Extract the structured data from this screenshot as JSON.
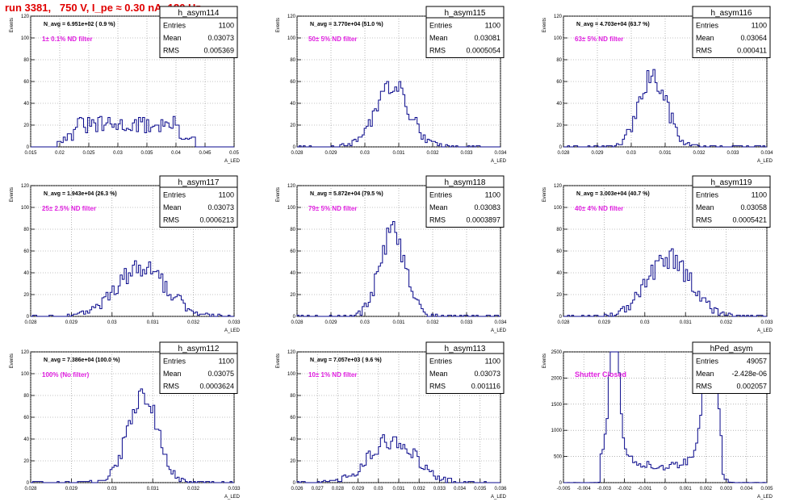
{
  "page_title": "run 3381,   750 V, I_pe ≈ 0.30 nA, 120 Hz",
  "colors": {
    "histogram": "#0a0a8c",
    "filter_label": "#e020e0",
    "title": "#e00000"
  },
  "chart_data": [
    {
      "type": "histogram",
      "name": "h_asym114",
      "navg": "N_avg = 6.951e+02 ( 0.9 %)",
      "label": "1± 0.1% ND filter",
      "stats": [
        [
          "Entries",
          "1100"
        ],
        [
          "Mean",
          "0.03073"
        ],
        [
          "RMS",
          "0.005369"
        ]
      ],
      "xlim": [
        0.015,
        0.05
      ],
      "ylim": [
        0,
        120
      ],
      "xticks": [
        "0.015",
        "0.02",
        "0.025",
        "0.03",
        "0.035",
        "0.04",
        "0.045",
        "0.05"
      ],
      "yticks": [
        "0",
        "20",
        "40",
        "60",
        "80",
        "100",
        "120"
      ],
      "xlabel": "A_LED",
      "ylabel": "Events",
      "dist": "flat",
      "center": 0.0306,
      "sigma": 0.0055
    },
    {
      "type": "histogram",
      "name": "h_asym115",
      "navg": "N_avg = 3.770e+04 (51.0 %)",
      "label": "50± 5% ND filter",
      "stats": [
        [
          "Entries",
          "1100"
        ],
        [
          "Mean",
          "0.03081"
        ],
        [
          "RMS",
          "0.0005054"
        ]
      ],
      "xlim": [
        0.028,
        0.034
      ],
      "ylim": [
        0,
        120
      ],
      "xticks": [
        "0.028",
        "0.029",
        "0.03",
        "0.031",
        "0.032",
        "0.033",
        "0.034"
      ],
      "yticks": [
        "0",
        "20",
        "40",
        "60",
        "80",
        "100",
        "120"
      ],
      "xlabel": "A_LED",
      "ylabel": "Events",
      "dist": "gauss",
      "center": 0.03081,
      "sigma": 0.0005,
      "peak": 55
    },
    {
      "type": "histogram",
      "name": "h_asym116",
      "navg": "N_avg = 4.703e+04 (63.7 %)",
      "label": "63± 5% ND filter",
      "stats": [
        [
          "Entries",
          "1100"
        ],
        [
          "Mean",
          "0.03064"
        ],
        [
          "RMS",
          "0.000411"
        ]
      ],
      "xlim": [
        0.028,
        0.034
      ],
      "ylim": [
        0,
        120
      ],
      "xticks": [
        "0.028",
        "0.029",
        "0.03",
        "0.031",
        "0.032",
        "0.033",
        "0.034"
      ],
      "yticks": [
        "0",
        "20",
        "40",
        "60",
        "80",
        "100",
        "120"
      ],
      "xlabel": "A_LED",
      "ylabel": "Events",
      "dist": "gauss",
      "center": 0.03064,
      "sigma": 0.00041,
      "peak": 63
    },
    {
      "type": "histogram",
      "name": "h_asym117",
      "navg": "N_avg = 1.943e+04 (26.3 %)",
      "label": "25± 2.5% ND filter",
      "stats": [
        [
          "Entries",
          "1100"
        ],
        [
          "Mean",
          "0.03073"
        ],
        [
          "RMS",
          "0.0006213"
        ]
      ],
      "xlim": [
        0.028,
        0.033
      ],
      "ylim": [
        0,
        120
      ],
      "xticks": [
        "0.028",
        "0.029",
        "0.03",
        "0.031",
        "0.032",
        "0.033"
      ],
      "yticks": [
        "0",
        "20",
        "40",
        "60",
        "80",
        "100",
        "120"
      ],
      "xlabel": "A_LED",
      "ylabel": "Events",
      "dist": "gauss",
      "center": 0.03073,
      "sigma": 0.00062,
      "peak": 44
    },
    {
      "type": "histogram",
      "name": "h_asym118",
      "navg": "N_avg = 5.872e+04 (79.5 %)",
      "label": "79± 5% ND filter",
      "stats": [
        [
          "Entries",
          "1100"
        ],
        [
          "Mean",
          "0.03083"
        ],
        [
          "RMS",
          "0.0003897"
        ]
      ],
      "xlim": [
        0.028,
        0.034
      ],
      "ylim": [
        0,
        120
      ],
      "xticks": [
        "0.028",
        "0.029",
        "0.03",
        "0.031",
        "0.032",
        "0.033",
        "0.034"
      ],
      "yticks": [
        "0",
        "20",
        "40",
        "60",
        "80",
        "100",
        "120"
      ],
      "xlabel": "A_LED",
      "ylabel": "Events",
      "dist": "gauss",
      "center": 0.03083,
      "sigma": 0.00039,
      "peak": 76
    },
    {
      "type": "histogram",
      "name": "h_asym119",
      "navg": "N_avg = 3.003e+04 (40.7 %)",
      "label": "40± 4% ND filter",
      "stats": [
        [
          "Entries",
          "1100"
        ],
        [
          "Mean",
          "0.03058"
        ],
        [
          "RMS",
          "0.0005421"
        ]
      ],
      "xlim": [
        0.028,
        0.033
      ],
      "ylim": [
        0,
        120
      ],
      "xticks": [
        "0.028",
        "0.029",
        "0.03",
        "0.031",
        "0.032",
        "0.033"
      ],
      "yticks": [
        "0",
        "20",
        "40",
        "60",
        "80",
        "100",
        "120"
      ],
      "xlabel": "A_LED",
      "ylabel": "Events",
      "dist": "gauss",
      "center": 0.03058,
      "sigma": 0.00054,
      "peak": 53
    },
    {
      "type": "histogram",
      "name": "h_asym112",
      "navg": "N_avg = 7.386e+04 (100.0 %)",
      "label": "100% (No filter)",
      "stats": [
        [
          "Entries",
          "1100"
        ],
        [
          "Mean",
          "0.03075"
        ],
        [
          "RMS",
          "0.0003624"
        ]
      ],
      "xlim": [
        0.028,
        0.033
      ],
      "ylim": [
        0,
        120
      ],
      "xticks": [
        "0.028",
        "0.029",
        "0.03",
        "0.031",
        "0.032",
        "0.033"
      ],
      "yticks": [
        "0",
        "20",
        "40",
        "60",
        "80",
        "100",
        "120"
      ],
      "xlabel": "A_LED",
      "ylabel": "Events",
      "dist": "gauss",
      "center": 0.03075,
      "sigma": 0.00036,
      "peak": 82
    },
    {
      "type": "histogram",
      "name": "h_asym113",
      "navg": "N_avg = 7.057e+03 ( 9.6 %)",
      "label": "10± 1% ND filter",
      "stats": [
        [
          "Entries",
          "1100"
        ],
        [
          "Mean",
          "0.03073"
        ],
        [
          "RMS",
          "0.001116"
        ]
      ],
      "xlim": [
        0.026,
        0.036
      ],
      "ylim": [
        0,
        120
      ],
      "xticks": [
        "0.026",
        "0.027",
        "0.028",
        "0.029",
        "0.03",
        "0.031",
        "0.032",
        "0.033",
        "0.034",
        "0.035",
        "0.036"
      ],
      "yticks": [
        "0",
        "20",
        "40",
        "60",
        "80",
        "100",
        "120"
      ],
      "xlabel": "A_LED",
      "ylabel": "Events",
      "dist": "gauss",
      "center": 0.03073,
      "sigma": 0.00112,
      "peak": 40
    },
    {
      "type": "histogram",
      "name": "hPed_asym",
      "navg": "",
      "label": "Shutter Closed",
      "stats": [
        [
          "Entries",
          "49057"
        ],
        [
          "Mean",
          "-2.428e-06"
        ],
        [
          "RMS",
          "0.002057"
        ]
      ],
      "xlim": [
        -0.005,
        0.005
      ],
      "ylim": [
        0,
        2500
      ],
      "xticks": [
        "-0.005",
        "-0.004",
        "-0.003",
        "-0.002",
        "-0.001",
        "0",
        "0.001",
        "0.002",
        "0.003",
        "0.004",
        "0.005"
      ],
      "yticks": [
        "0",
        "500",
        "1000",
        "1500",
        "2000",
        "2500"
      ],
      "xlabel": "A_LED",
      "ylabel": "Events",
      "dist": "double"
    }
  ]
}
